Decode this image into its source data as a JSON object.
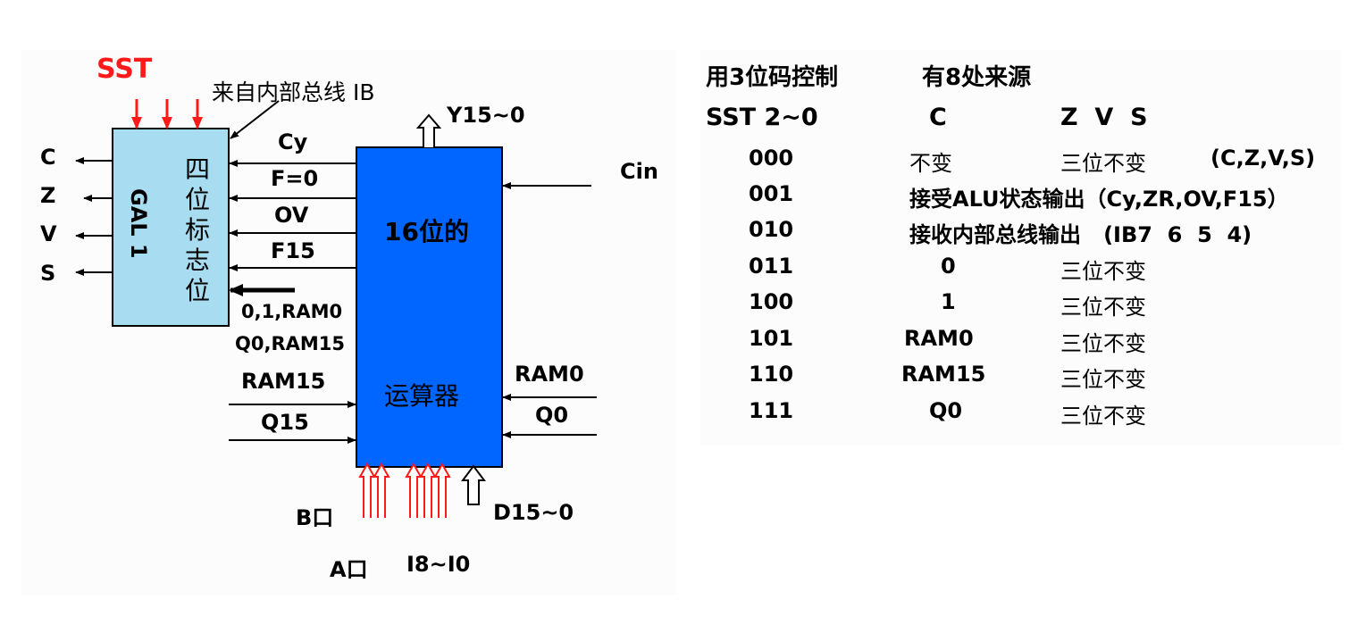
{
  "diagram": {
    "sst_label": "SST",
    "ib_label": "来自内部总线 IB",
    "gal_label": "GAL 1",
    "flag_label_chars": [
      "四",
      "位",
      "标",
      "志",
      "位"
    ],
    "flag_outputs": [
      "C",
      "Z",
      "V",
      "S"
    ],
    "alu_inputs_to_flags": [
      "Cy",
      "F=0",
      "OV",
      "F15"
    ],
    "shift_inputs": [
      "0,1,RAM0",
      "Q0,RAM15"
    ],
    "left_shift_labels": [
      "RAM15",
      "Q15"
    ],
    "right_shift_labels": [
      "RAM0",
      "Q0"
    ],
    "alu_label_top": "16位的",
    "alu_label_bottom": "运算器",
    "y_output": "Y15~0",
    "cin_label": "Cin",
    "b_port": "B口",
    "a_port": "A口",
    "instruction": "I8~I0",
    "d_input": "D15~0",
    "colors": {
      "alu_fill": "#0066ff",
      "gal_fill": "#a8dcf0",
      "red_arrows": "#ff1a1a"
    }
  },
  "table": {
    "intro_left": "用3位码控制",
    "intro_right": "有8处来源",
    "headers": {
      "sst": "SST 2~0",
      "c": "C",
      "zvs": "Z  V  S"
    },
    "rows": [
      {
        "code": "000",
        "c": "不变",
        "zvs": "三位不变",
        "note": "(C,Z,V,S)"
      },
      {
        "code": "001",
        "wide": "接受ALU状态输出（Cy,ZR,OV,F15）"
      },
      {
        "code": "010",
        "wide": "接收内部总线输出   (IB7  6  5  4)"
      },
      {
        "code": "011",
        "c": "0",
        "zvs": "三位不变"
      },
      {
        "code": "100",
        "c": "1",
        "zvs": "三位不变"
      },
      {
        "code": "101",
        "c": "RAM0",
        "zvs": "三位不变"
      },
      {
        "code": "110",
        "c": "RAM15",
        "zvs": "三位不变"
      },
      {
        "code": "111",
        "c": "Q0",
        "zvs": "三位不变"
      }
    ]
  }
}
